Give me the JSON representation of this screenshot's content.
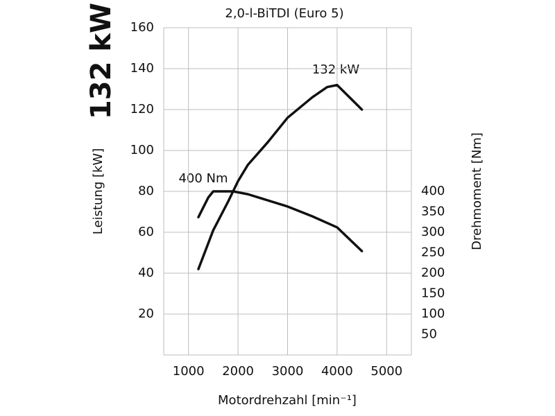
{
  "chart_data": {
    "type": "line",
    "title": "2,0-l-BiTDI (Euro 5)",
    "headline": "132 kW",
    "x_label": "Motordrehzahl [min⁻¹]",
    "y_label": "Leistung [kW]",
    "y2_label": "Drehmoment [Nm]",
    "annotations": [
      "132 kW",
      "400 Nm"
    ],
    "xlim": [
      500,
      5500
    ],
    "xticks": [
      1000,
      2000,
      3000,
      4000,
      5000
    ],
    "ylim": [
      0,
      160
    ],
    "yticks": [
      20,
      40,
      60,
      80,
      100,
      120,
      140,
      160
    ],
    "y2lim": [
      0,
      800
    ],
    "y2ticks": [
      50,
      100,
      150,
      200,
      250,
      300,
      350,
      400
    ],
    "grid": true,
    "series": [
      {
        "color": "#111111",
        "x": [
          1200,
          1500,
          1800,
          2000,
          2200,
          2600,
          3000,
          3500,
          3800,
          4000,
          4500
        ],
        "values": [
          42,
          61,
          75,
          85,
          93,
          104,
          116,
          126,
          131,
          132,
          120
        ]
      },
      {
        "color": "#111111",
        "axis": "y2",
        "x": [
          1200,
          1400,
          1500,
          1900,
          2200,
          3000,
          3500,
          4000,
          4500
        ],
        "values": [
          337,
          385,
          400,
          400,
          393,
          363,
          339,
          312,
          254
        ]
      }
    ]
  }
}
